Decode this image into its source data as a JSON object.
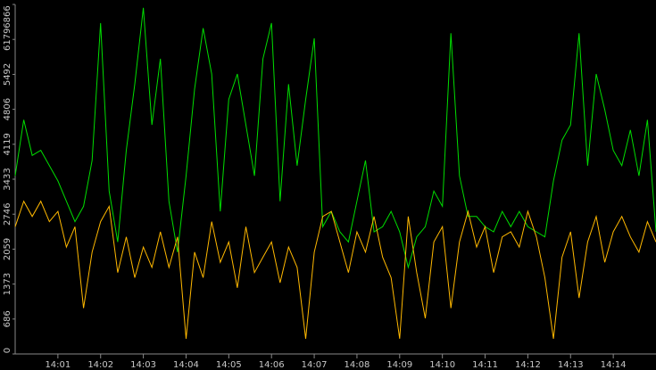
{
  "chart_data": {
    "type": "line",
    "x": [
      0,
      0.2,
      0.4,
      0.6,
      0.8,
      1,
      1.2,
      1.4,
      1.6,
      1.8,
      2,
      2.2,
      2.4,
      2.6,
      2.8,
      3,
      3.2,
      3.4,
      3.6,
      3.8,
      4,
      4.2,
      4.4,
      4.6,
      4.8,
      5,
      5.2,
      5.4,
      5.6,
      5.8,
      6,
      6.2,
      6.4,
      6.6,
      6.8,
      7,
      7.2,
      7.4,
      7.6,
      7.8,
      8,
      8.2,
      8.4,
      8.6,
      8.8,
      9,
      9.2,
      9.4,
      9.6,
      9.8,
      10,
      10.2,
      10.4,
      10.6,
      10.8,
      11,
      11.2,
      11.4,
      11.6,
      11.8,
      12,
      12.2,
      12.4,
      12.6,
      12.8,
      13,
      13.2,
      13.4,
      13.6,
      13.8,
      14,
      14.2,
      14.4,
      14.6,
      14.8,
      15
    ],
    "series": [
      {
        "color": "#00dd00",
        "values": [
          3500,
          4600,
          3900,
          4000,
          3700,
          3400,
          3000,
          2600,
          2900,
          3800,
          6500,
          3200,
          2200,
          4000,
          5300,
          6800,
          4500,
          5800,
          3000,
          2000,
          3500,
          5200,
          6400,
          5500,
          2800,
          5000,
          5500,
          4500,
          3500,
          5800,
          6500,
          3000,
          5300,
          3700,
          5000,
          6200,
          2500,
          2800,
          2400,
          2200,
          3000,
          3800,
          2400,
          2500,
          2800,
          2400,
          1700,
          2300,
          2500,
          3200,
          2900,
          6300,
          3500,
          2700,
          2700,
          2500,
          2400,
          2800,
          2500,
          2800,
          2500,
          2400,
          2300,
          3400,
          4200,
          4500,
          6300,
          3700,
          5500,
          4800,
          4000,
          3700,
          4400,
          3500,
          4600,
          2400
        ]
      },
      {
        "color": "#ffb800",
        "values": [
          2500,
          3000,
          2700,
          3000,
          2600,
          2800,
          2100,
          2500,
          900,
          2000,
          2600,
          2900,
          1600,
          2300,
          1500,
          2100,
          1700,
          2400,
          1700,
          2300,
          300,
          2000,
          1500,
          2600,
          1800,
          2200,
          1300,
          2500,
          1600,
          1900,
          2200,
          1400,
          2100,
          1700,
          300,
          2000,
          2700,
          2800,
          2200,
          1600,
          2400,
          2000,
          2700,
          1900,
          1500,
          300,
          2700,
          1600,
          700,
          2200,
          2500,
          900,
          2200,
          2800,
          2100,
          2500,
          1600,
          2300,
          2400,
          2100,
          2800,
          2300,
          1500,
          300,
          1900,
          2400,
          1100,
          2200,
          2700,
          1800,
          2400,
          2700,
          2300,
          2000,
          2600,
          2200
        ]
      }
    ],
    "xlim": [
      0,
      15
    ],
    "xticks": [
      {
        "value": 1,
        "label": "14:01"
      },
      {
        "value": 2,
        "label": "14:02"
      },
      {
        "value": 3,
        "label": "14:03"
      },
      {
        "value": 4,
        "label": "14:04"
      },
      {
        "value": 5,
        "label": "14:05"
      },
      {
        "value": 6,
        "label": "14:06"
      },
      {
        "value": 7,
        "label": "14:07"
      },
      {
        "value": 8,
        "label": "14:08"
      },
      {
        "value": 9,
        "label": "14:09"
      },
      {
        "value": 10,
        "label": "14:10"
      },
      {
        "value": 11,
        "label": "14:11"
      },
      {
        "value": 12,
        "label": "14:12"
      },
      {
        "value": 13,
        "label": "14:13"
      },
      {
        "value": 14,
        "label": "14:14"
      }
    ],
    "ylim": [
      0,
      6866
    ],
    "yticks": [
      0,
      686,
      1373,
      2059,
      2746,
      3433,
      4119,
      4806,
      5492,
      6179,
      6866
    ]
  }
}
